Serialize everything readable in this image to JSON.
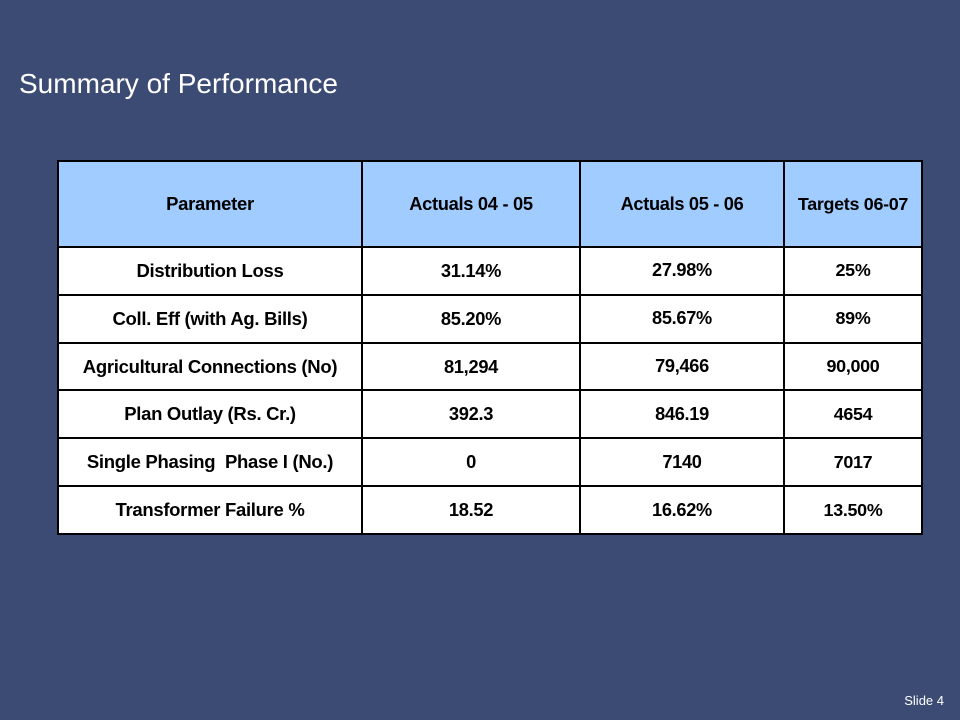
{
  "title": "Summary of Performance",
  "table": {
    "headers": [
      "Parameter",
      "Actuals 04 - 05",
      "Actuals 05 - 06",
      "Targets 06-07"
    ],
    "rows": [
      [
        "Distribution Loss",
        "31.14%",
        "27.98%",
        "25%"
      ],
      [
        "Coll. Eff (with Ag. Bills)",
        "85.20%",
        "85.67%",
        "89%"
      ],
      [
        "Agricultural Connections (No)",
        "81,294",
        "79,466",
        "90,000"
      ],
      [
        "Plan Outlay (Rs. Cr.)",
        "392.3",
        "846.19",
        "4654"
      ],
      [
        "Single Phasing  Phase I (No.)",
        "0",
        "7140",
        "7017"
      ],
      [
        "Transformer Failure %",
        "18.52",
        "16.62%",
        "13.50%"
      ]
    ]
  },
  "footer": {
    "slide_number": "Slide 4"
  },
  "colors": {
    "background": "#3c4b73",
    "header_fill": "#a0ccff",
    "cell_fill": "#ffffff",
    "border": "#000000",
    "title_text": "#ffffff"
  }
}
